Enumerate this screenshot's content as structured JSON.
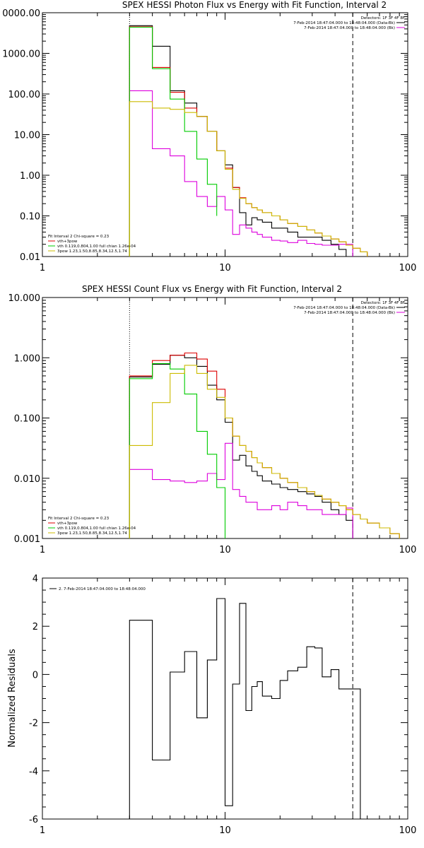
{
  "chart_data": [
    {
      "type": "line",
      "title": "SPEX HESSI Photon Flux vs Energy with Fit Function, Interval 2",
      "xlabel": "",
      "ylabel": "",
      "xscale": "log",
      "yscale": "log",
      "xlim": [
        1,
        100
      ],
      "ylim": [
        0.01,
        10000
      ],
      "xtick_labels": [
        "1",
        "10",
        "100"
      ],
      "ytick_labels": [
        "0.01",
        "0.10",
        "1.00",
        "10.00",
        "100.00",
        "1000.00",
        "0000.00"
      ],
      "vlines": [
        3,
        50
      ],
      "legend_top": {
        "placement": "top-right",
        "header": "Detectors: 1F 3F 4F 8F",
        "entries": [
          {
            "text": "7-Feb-2014 18:47:04.000 to 18:48:04.000 (Data-Bk)",
            "color": "#000000"
          },
          {
            "text": "7-Feb-2014 18:47:04.000 to 18:48:04.000 (Bk)",
            "color": "#dd00dd"
          }
        ]
      },
      "legend_bottom": {
        "placement": "bottom-left",
        "header": "Fit Interval 2   Chi-square = 0.23",
        "entries": [
          {
            "text": "vth+3pow",
            "color": "#dd0000"
          },
          {
            "text": "vth 0.119,0.804,1.00  full chian 1.26e-04",
            "color": "#00cc00"
          },
          {
            "text": "3pow 1.23,1.50,8.85,8.34,12.5,1.74",
            "color": "#ccbb00"
          }
        ]
      },
      "series": [
        {
          "label": "data-bk",
          "color": "#000000",
          "edges": [
            3,
            4,
            5,
            6,
            7,
            8,
            9,
            10,
            11,
            12,
            13,
            14,
            15,
            16,
            18,
            20,
            22,
            25,
            28,
            31,
            34,
            38,
            42,
            46,
            50
          ],
          "values": [
            4800,
            1500,
            120,
            60,
            28,
            12,
            4,
            1.8,
            0.5,
            0.12,
            0.06,
            0.09,
            0.08,
            0.07,
            0.05,
            0.05,
            0.04,
            0.03,
            0.03,
            0.03,
            0.025,
            0.02,
            0.015,
            0.01
          ]
        },
        {
          "label": "bk",
          "color": "#dd00dd",
          "edges": [
            3,
            4,
            5,
            6,
            7,
            8,
            9,
            10,
            11,
            12,
            13,
            14,
            15,
            16,
            18,
            20,
            22,
            25,
            28,
            31,
            34,
            38,
            42,
            46,
            50
          ],
          "values": [
            120,
            4.5,
            3,
            0.7,
            0.3,
            0.17,
            0.3,
            0.14,
            0.035,
            0.06,
            0.05,
            0.04,
            0.035,
            0.03,
            0.025,
            0.024,
            0.022,
            0.025,
            0.021,
            0.02,
            0.019,
            0.019,
            0.02,
            0.02
          ]
        },
        {
          "label": "vth+3pow",
          "color": "#dd0000",
          "edges": [
            3,
            4,
            5,
            6,
            7,
            8,
            9,
            10,
            11,
            12,
            13,
            14,
            15,
            16,
            18,
            20,
            22,
            25,
            28,
            31,
            34,
            38,
            42,
            46,
            50,
            55,
            60
          ],
          "values": [
            4500,
            450,
            110,
            45,
            28,
            12,
            4,
            1.5,
            0.5,
            0.28,
            0.2,
            0.16,
            0.14,
            0.12,
            0.1,
            0.08,
            0.065,
            0.055,
            0.045,
            0.038,
            0.032,
            0.027,
            0.023,
            0.019,
            0.016,
            0.013
          ]
        },
        {
          "label": "vth",
          "color": "#00cc00",
          "edges": [
            3,
            4,
            5,
            6,
            7,
            8,
            9
          ],
          "values": [
            4400,
            420,
            75,
            12,
            2.5,
            0.6,
            0.1
          ]
        },
        {
          "label": "3pow",
          "color": "#ccbb00",
          "edges": [
            3,
            4,
            5,
            6,
            7,
            8,
            9,
            10,
            11,
            12,
            13,
            14,
            15,
            16,
            18,
            20,
            22,
            25,
            28,
            31,
            34,
            38,
            42,
            46,
            50,
            55,
            60
          ],
          "values": [
            65,
            45,
            42,
            35,
            28,
            12,
            4,
            1.4,
            0.45,
            0.27,
            0.2,
            0.16,
            0.14,
            0.12,
            0.1,
            0.08,
            0.065,
            0.055,
            0.045,
            0.038,
            0.032,
            0.027,
            0.023,
            0.019,
            0.016,
            0.013
          ]
        }
      ]
    },
    {
      "type": "line",
      "title": "SPEX HESSI Count Flux vs Energy with Fit Function, Interval 2",
      "xlabel": "",
      "ylabel": "",
      "xscale": "log",
      "yscale": "log",
      "xlim": [
        1,
        100
      ],
      "ylim": [
        0.001,
        10
      ],
      "xtick_labels": [
        "1",
        "10",
        "100"
      ],
      "ytick_labels": [
        "0.001",
        "0.010",
        "0.100",
        "1.000",
        "10.000"
      ],
      "vlines": [
        3,
        50
      ],
      "legend_top": {
        "placement": "top-right",
        "header": "Detectors: 1F 3F 4F 8F",
        "entries": [
          {
            "text": "7-Feb-2014 18:47:04.000 to 18:48:04.000 (Data-Bk)",
            "color": "#000000"
          },
          {
            "text": "7-Feb-2014 18:47:04.000 to 18:48:04.000 (Bk)",
            "color": "#dd00dd"
          }
        ]
      },
      "legend_bottom": {
        "placement": "bottom-left",
        "header": "Fit Interval 2   Chi-square = 0.23",
        "entries": [
          {
            "text": "vth+3pow",
            "color": "#dd0000"
          },
          {
            "text": "vth 0.119,0.804,1.00  full chian 1.26e-04",
            "color": "#00cc00"
          },
          {
            "text": "3pow 1.23,1.50,8.85,8.34,12.5,1.74",
            "color": "#ccbb00"
          }
        ]
      },
      "series": [
        {
          "label": "data-bk",
          "color": "#000000",
          "edges": [
            3,
            4,
            5,
            6,
            7,
            8,
            9,
            10,
            11,
            12,
            13,
            14,
            15,
            16,
            18,
            20,
            22,
            25,
            28,
            31,
            34,
            38,
            42,
            46,
            50
          ],
          "values": [
            0.48,
            0.78,
            1.1,
            1.0,
            0.72,
            0.35,
            0.2,
            0.085,
            0.02,
            0.024,
            0.016,
            0.013,
            0.011,
            0.009,
            0.008,
            0.007,
            0.0065,
            0.006,
            0.0055,
            0.005,
            0.004,
            0.003,
            0.0025,
            0.002
          ]
        },
        {
          "label": "bk",
          "color": "#dd00dd",
          "edges": [
            3,
            4,
            5,
            6,
            7,
            8,
            9,
            10,
            11,
            12,
            13,
            14,
            15,
            16,
            18,
            20,
            22,
            25,
            28,
            31,
            34,
            38,
            42,
            46,
            50
          ],
          "values": [
            0.014,
            0.0095,
            0.009,
            0.0085,
            0.009,
            0.012,
            0.0095,
            0.038,
            0.0065,
            0.005,
            0.004,
            0.004,
            0.003,
            0.003,
            0.0035,
            0.003,
            0.004,
            0.0035,
            0.003,
            0.003,
            0.0025,
            0.0025,
            0.0025,
            0.0032
          ]
        },
        {
          "label": "vth+3pow",
          "color": "#dd0000",
          "edges": [
            3,
            4,
            5,
            6,
            7,
            8,
            9,
            10,
            11,
            12,
            13,
            14,
            15,
            16,
            18,
            20,
            22,
            25,
            28,
            31,
            34,
            38,
            42,
            46,
            50,
            55,
            60,
            70,
            80,
            90
          ],
          "values": [
            0.5,
            0.9,
            1.1,
            1.2,
            0.95,
            0.6,
            0.3,
            0.1,
            0.05,
            0.035,
            0.028,
            0.022,
            0.018,
            0.015,
            0.012,
            0.01,
            0.0085,
            0.007,
            0.006,
            0.0052,
            0.0045,
            0.004,
            0.0035,
            0.003,
            0.0025,
            0.0021,
            0.0018,
            0.0015,
            0.0012
          ]
        },
        {
          "label": "vth",
          "color": "#00cc00",
          "edges": [
            3,
            4,
            5,
            6,
            7,
            8,
            9,
            10
          ],
          "values": [
            0.45,
            0.8,
            0.65,
            0.25,
            0.06,
            0.025,
            0.007
          ]
        },
        {
          "label": "3pow",
          "color": "#ccbb00",
          "edges": [
            3,
            4,
            5,
            6,
            7,
            8,
            9,
            10,
            11,
            12,
            13,
            14,
            15,
            16,
            18,
            20,
            22,
            25,
            28,
            31,
            34,
            38,
            42,
            46,
            50,
            55,
            60,
            70,
            80,
            90
          ],
          "values": [
            0.035,
            0.18,
            0.55,
            0.75,
            0.55,
            0.3,
            0.22,
            0.1,
            0.05,
            0.035,
            0.028,
            0.022,
            0.018,
            0.015,
            0.012,
            0.01,
            0.0085,
            0.007,
            0.006,
            0.0052,
            0.0045,
            0.004,
            0.0035,
            0.003,
            0.0025,
            0.0021,
            0.0018,
            0.0015,
            0.0012
          ]
        }
      ]
    },
    {
      "type": "line",
      "title": "",
      "xlabel": "",
      "ylabel": "Normalized Residuals",
      "xscale": "log",
      "yscale": "linear",
      "xlim": [
        1,
        100
      ],
      "ylim": [
        -6,
        4
      ],
      "xtick_labels": [
        "1",
        "10",
        "100"
      ],
      "ytick_values": [
        -6,
        -4,
        -2,
        0,
        2,
        4
      ],
      "ytick_labels": [
        "-6",
        "-4",
        "-2",
        "0",
        "2",
        "4"
      ],
      "vlines": [
        50
      ],
      "legend_top": {
        "placement": "top-left",
        "header": "",
        "entries": [
          {
            "text": "2.  7-Feb-2014 18:47:04.000 to 18:48:04.000",
            "color": "#000000"
          }
        ]
      },
      "series": [
        {
          "label": "residuals",
          "color": "#000000",
          "edges": [
            3,
            4,
            5,
            6,
            7,
            8,
            9,
            10,
            11,
            12,
            13,
            14,
            15,
            16,
            18,
            20,
            22,
            25,
            28,
            31,
            34,
            38,
            42,
            46,
            50,
            55
          ],
          "values": [
            2.25,
            -3.55,
            0.1,
            0.95,
            -1.8,
            0.6,
            3.15,
            -5.45,
            -0.4,
            2.95,
            -1.5,
            -0.5,
            -0.3,
            -0.9,
            -1.0,
            -0.25,
            0.15,
            0.3,
            1.15,
            1.1,
            -0.1,
            0.2,
            -0.6,
            -0.6,
            -0.6
          ]
        }
      ]
    }
  ]
}
